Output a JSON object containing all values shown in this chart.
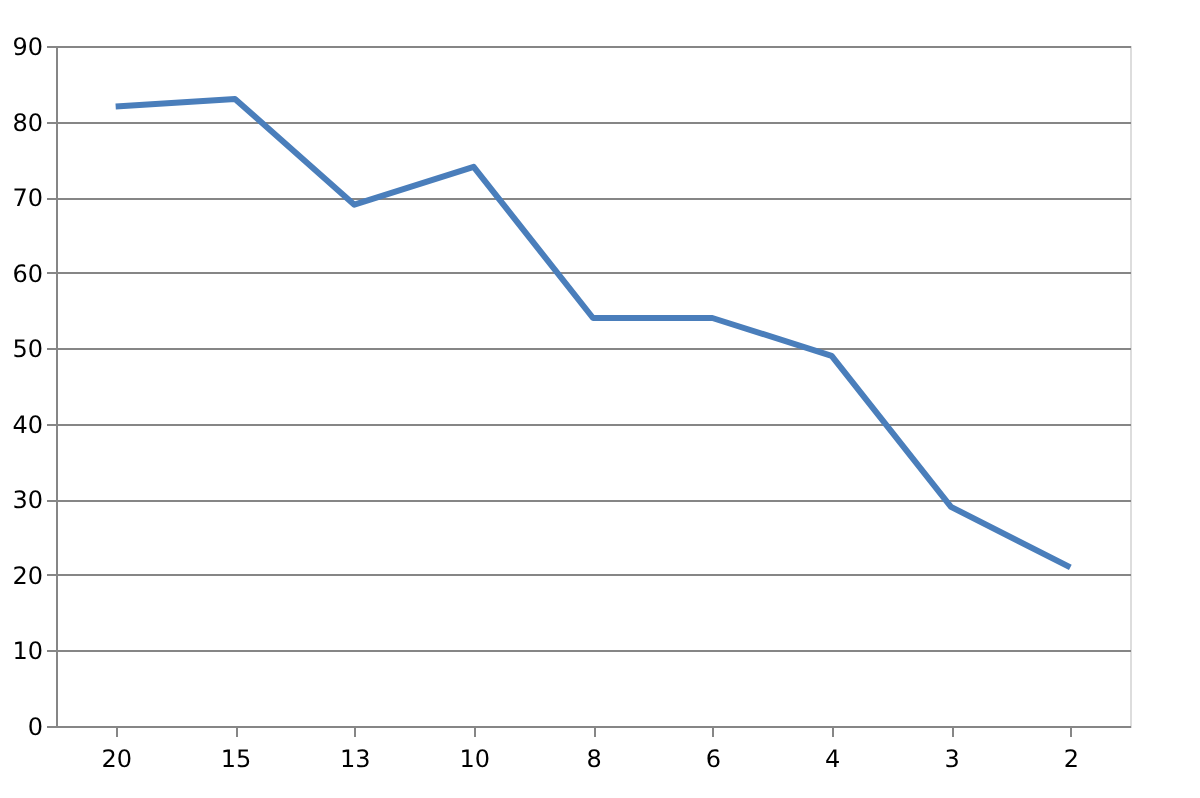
{
  "chart_data": {
    "type": "line",
    "categories": [
      "20",
      "15",
      "13",
      "10",
      "8",
      "6",
      "4",
      "3",
      "2"
    ],
    "series": [
      {
        "color": "#4a7ebb",
        "values": [
          82,
          83,
          69,
          74,
          54,
          54,
          49,
          29,
          21
        ]
      }
    ],
    "ylim": [
      0,
      90
    ],
    "yticks": [
      0,
      10,
      20,
      30,
      40,
      50,
      60,
      70,
      80,
      90
    ],
    "grid": "y",
    "marker": "none",
    "line_style": "solid"
  }
}
